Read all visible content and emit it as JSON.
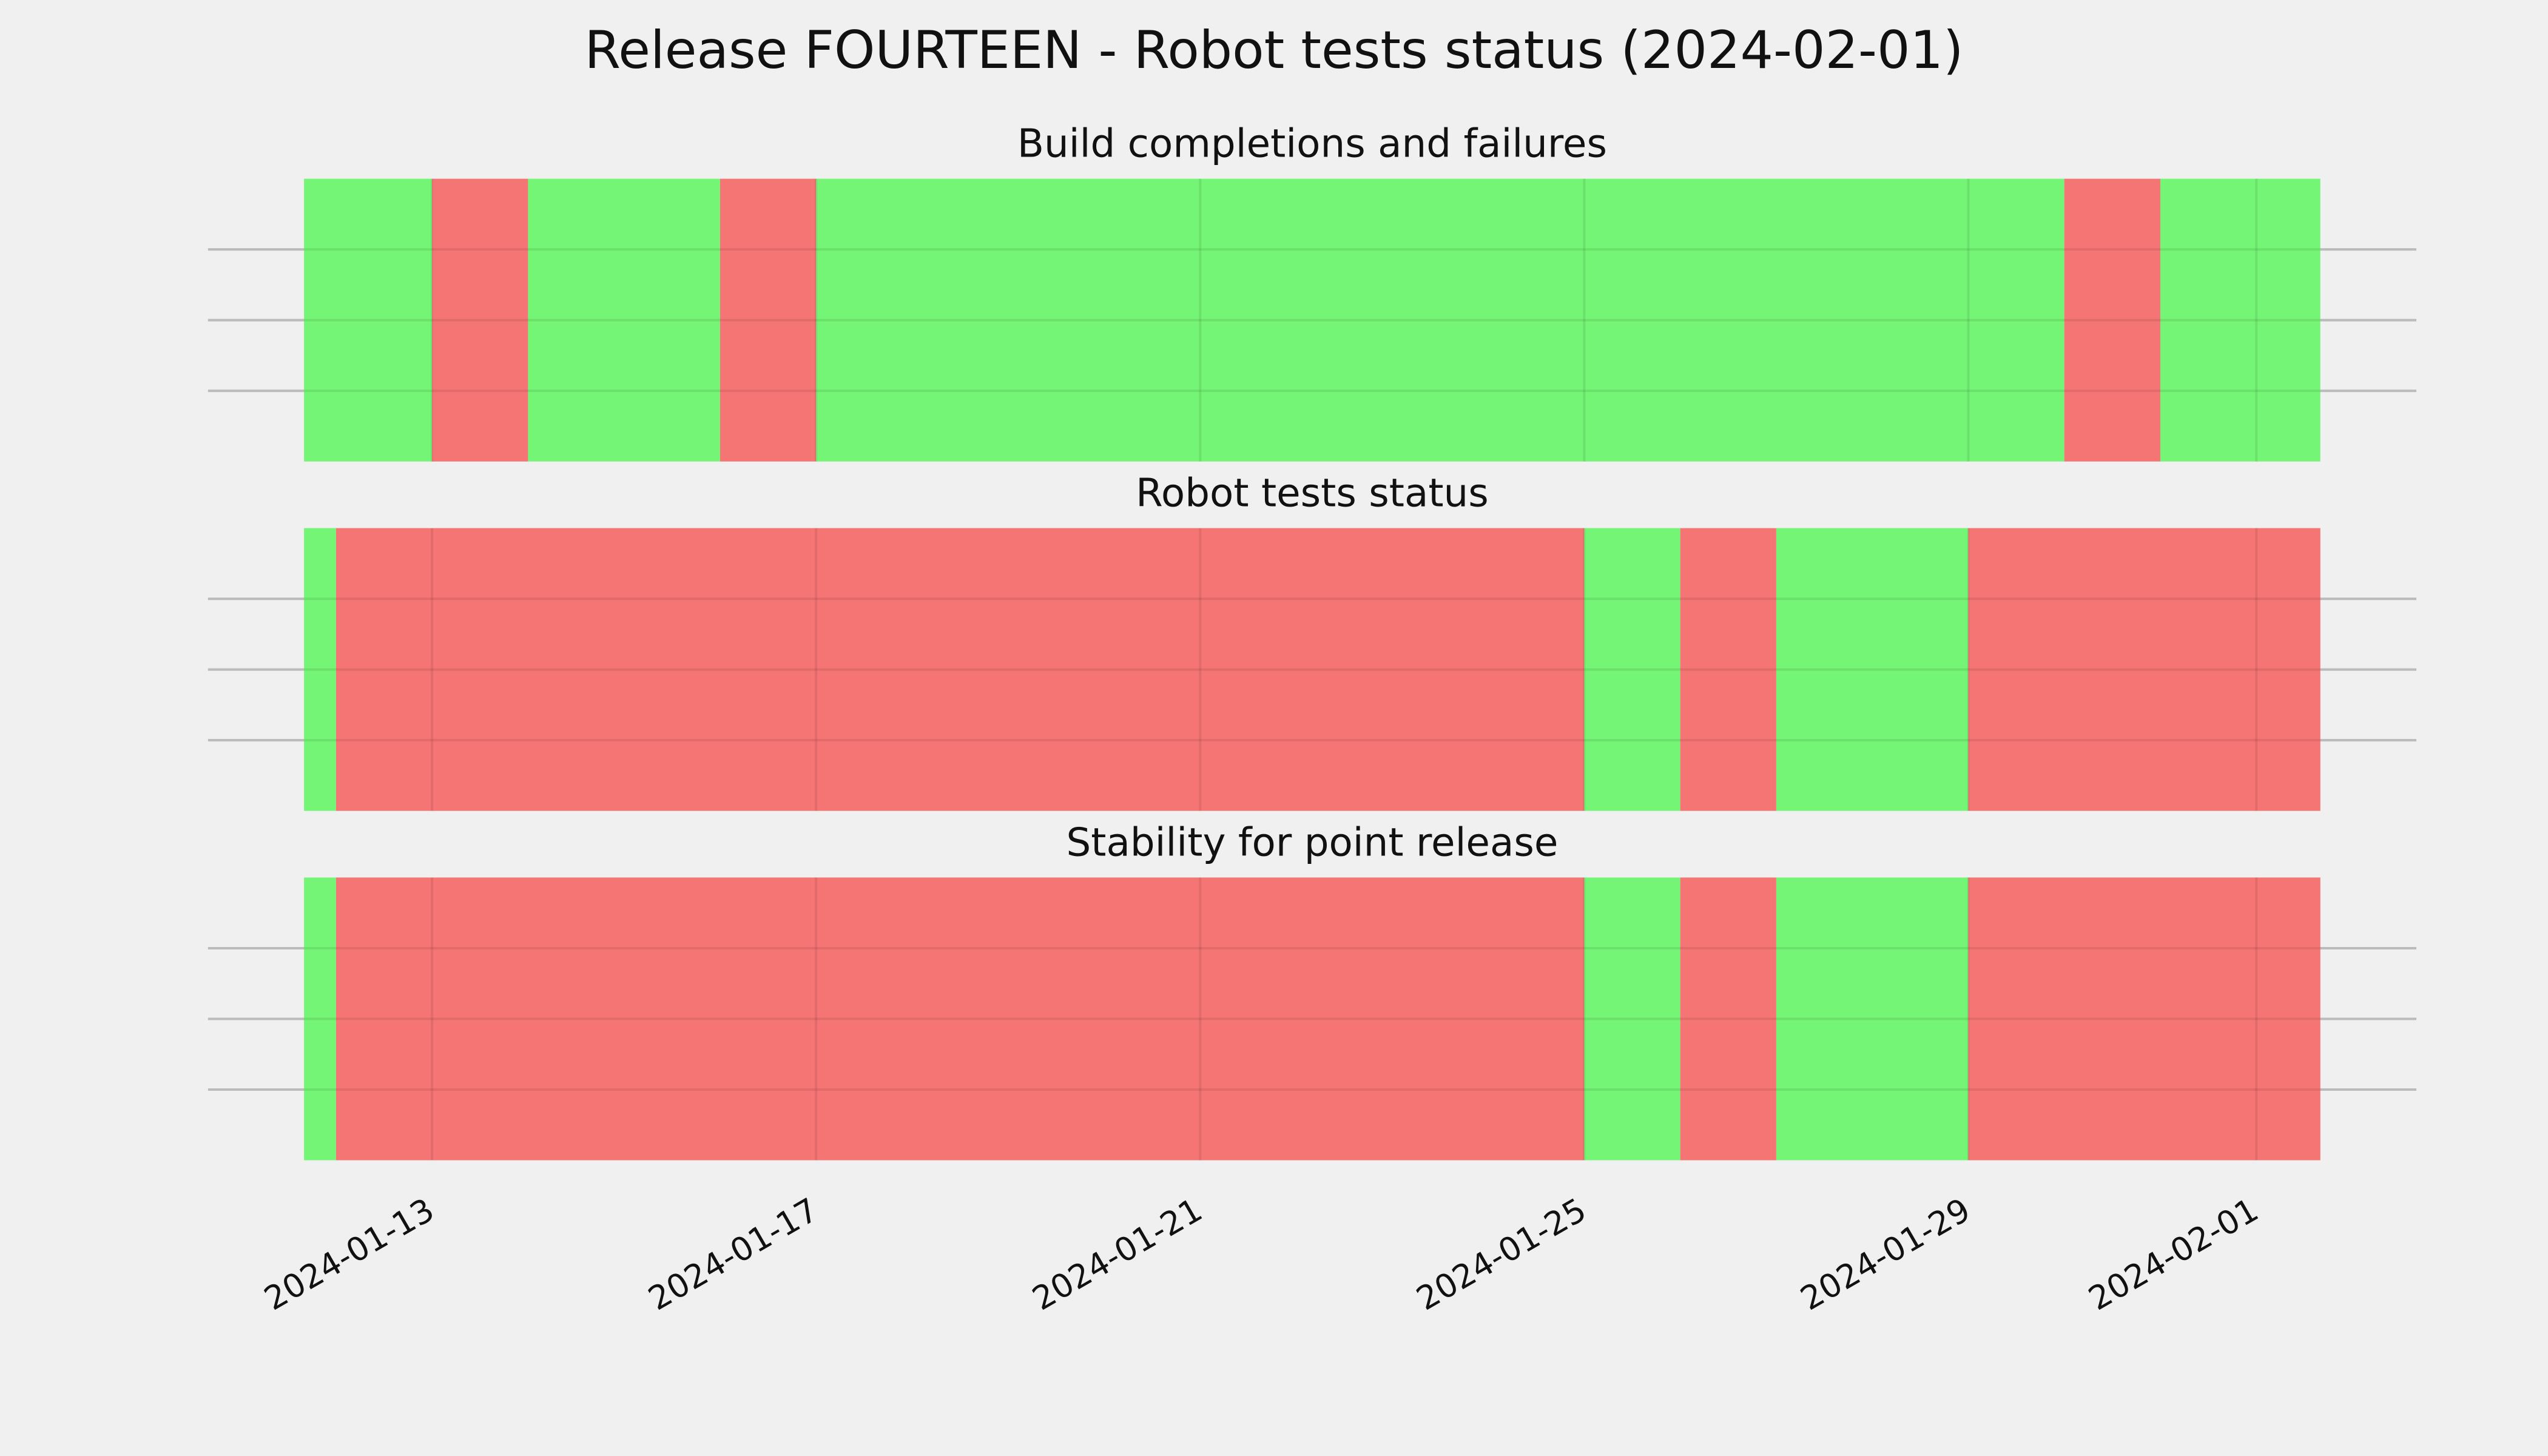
{
  "title": "Release FOURTEEN - Robot tests status (2024-02-01)",
  "chart_data": [
    {
      "type": "timeline",
      "title": "Build completions and failures",
      "xlim": [
        "2024-01-10T16:00",
        "2024-02-02T16:00"
      ],
      "xticks": [
        "2024-01-13",
        "2024-01-17",
        "2024-01-21",
        "2024-01-25",
        "2024-01-29",
        "2024-02-01"
      ],
      "ylim": [
        0,
        1
      ],
      "yticks": [
        0.25,
        0.5,
        0.75
      ],
      "grid": true,
      "segments": [
        {
          "start": "2024-01-11T16:00",
          "end": "2024-01-13",
          "color": "#75f575"
        },
        {
          "start": "2024-01-13",
          "end": "2024-01-14",
          "color": "#f57575"
        },
        {
          "start": "2024-01-14",
          "end": "2024-01-16",
          "color": "#75f575"
        },
        {
          "start": "2024-01-16",
          "end": "2024-01-17",
          "color": "#f57575"
        },
        {
          "start": "2024-01-17",
          "end": "2024-01-30",
          "color": "#75f575"
        },
        {
          "start": "2024-01-30",
          "end": "2024-01-31",
          "color": "#f57575"
        },
        {
          "start": "2024-01-31",
          "end": "2024-02-01T16:00",
          "color": "#75f575"
        }
      ]
    },
    {
      "type": "timeline",
      "title": "Robot tests status",
      "xlim": [
        "2024-01-10T16:00",
        "2024-02-02T16:00"
      ],
      "xticks": [
        "2024-01-13",
        "2024-01-17",
        "2024-01-21",
        "2024-01-25",
        "2024-01-29",
        "2024-02-01"
      ],
      "ylim": [
        0,
        1
      ],
      "yticks": [
        0.25,
        0.5,
        0.75
      ],
      "grid": true,
      "segments": [
        {
          "start": "2024-01-11T16:00",
          "end": "2024-01-12",
          "color": "#75f575"
        },
        {
          "start": "2024-01-12",
          "end": "2024-01-25",
          "color": "#f57575"
        },
        {
          "start": "2024-01-25",
          "end": "2024-01-26",
          "color": "#75f575"
        },
        {
          "start": "2024-01-26",
          "end": "2024-01-27",
          "color": "#f57575"
        },
        {
          "start": "2024-01-27",
          "end": "2024-01-29",
          "color": "#75f575"
        },
        {
          "start": "2024-01-29",
          "end": "2024-02-01T16:00",
          "color": "#f57575"
        }
      ]
    },
    {
      "type": "timeline",
      "title": "Stability for point release",
      "xlim": [
        "2024-01-10T16:00",
        "2024-02-02T16:00"
      ],
      "xticks": [
        "2024-01-13",
        "2024-01-17",
        "2024-01-21",
        "2024-01-25",
        "2024-01-29",
        "2024-02-01"
      ],
      "ylim": [
        0,
        1
      ],
      "yticks": [
        0.25,
        0.5,
        0.75
      ],
      "grid": true,
      "show_xtick_labels": true,
      "segments": [
        {
          "start": "2024-01-11T16:00",
          "end": "2024-01-12",
          "color": "#75f575"
        },
        {
          "start": "2024-01-12",
          "end": "2024-01-25",
          "color": "#f57575"
        },
        {
          "start": "2024-01-25",
          "end": "2024-01-26",
          "color": "#75f575"
        },
        {
          "start": "2024-01-26",
          "end": "2024-01-27",
          "color": "#f57575"
        },
        {
          "start": "2024-01-27",
          "end": "2024-01-29",
          "color": "#75f575"
        },
        {
          "start": "2024-01-29",
          "end": "2024-02-01T16:00",
          "color": "#f57575"
        }
      ]
    }
  ]
}
